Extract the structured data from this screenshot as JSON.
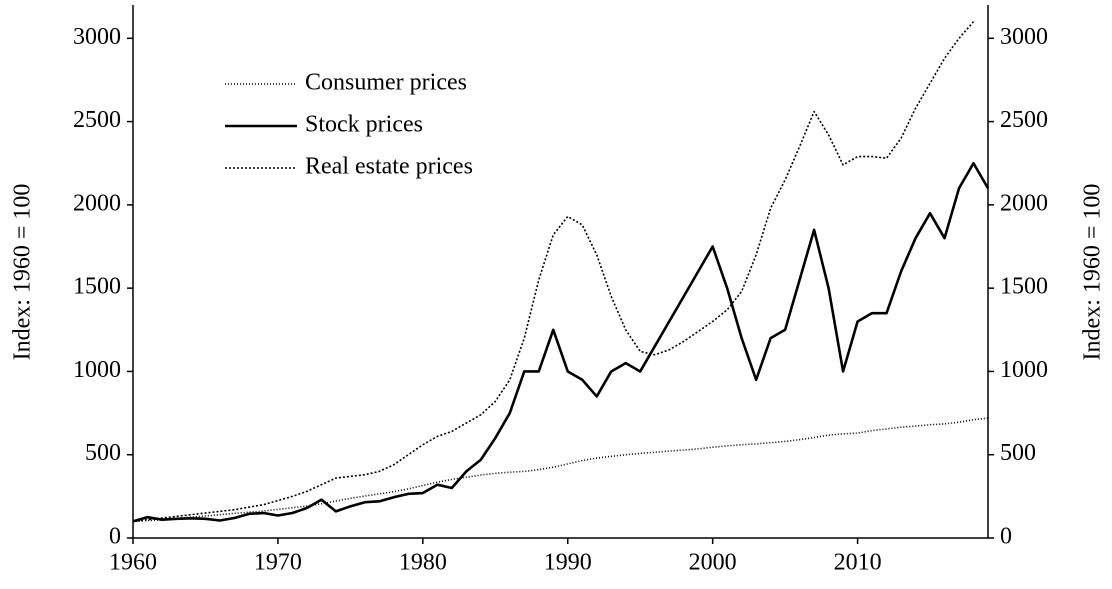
{
  "chart_data": {
    "type": "line",
    "ylabel": "Index: 1960 = 100",
    "y2label": "Index: 1960 = 100",
    "x": [
      1960,
      1961,
      1962,
      1963,
      1964,
      1965,
      1966,
      1967,
      1968,
      1969,
      1970,
      1971,
      1972,
      1973,
      1974,
      1975,
      1976,
      1977,
      1978,
      1979,
      1980,
      1981,
      1982,
      1983,
      1984,
      1985,
      1986,
      1987,
      1988,
      1989,
      1990,
      1991,
      1992,
      1993,
      1994,
      1995,
      1996,
      1997,
      1998,
      1999,
      2000,
      2001,
      2002,
      2003,
      2004,
      2005,
      2006,
      2007,
      2008,
      2009,
      2010,
      2011,
      2012,
      2013,
      2014,
      2015,
      2016,
      2017,
      2018,
      2019
    ],
    "xlim": [
      1960,
      2019
    ],
    "xticks": [
      1960,
      1970,
      1980,
      1990,
      2000,
      2010
    ],
    "ylim": [
      0,
      3200
    ],
    "yticks": [
      0,
      500,
      1000,
      1500,
      2000,
      2500,
      3000
    ],
    "y2lim": [
      0,
      3200
    ],
    "y2ticks": [
      0,
      500,
      1000,
      1500,
      2000,
      2500,
      3000
    ],
    "legend": "upper left",
    "series": [
      {
        "name": "Consumer prices",
        "color": "#000000",
        "dash": "1,2",
        "width": 1.6,
        "values": [
          100,
          105,
          110,
          118,
          125,
          132,
          140,
          148,
          155,
          162,
          172,
          182,
          192,
          205,
          222,
          238,
          252,
          265,
          278,
          295,
          315,
          335,
          352,
          365,
          378,
          388,
          395,
          400,
          410,
          425,
          445,
          465,
          480,
          490,
          500,
          508,
          515,
          522,
          528,
          535,
          545,
          553,
          560,
          565,
          572,
          580,
          590,
          603,
          618,
          625,
          630,
          645,
          655,
          665,
          672,
          680,
          685,
          695,
          710,
          720
        ]
      },
      {
        "name": "Stock prices",
        "color": "#000000",
        "dash": "none",
        "width": 2.6,
        "values": [
          100,
          125,
          110,
          115,
          118,
          115,
          105,
          120,
          145,
          150,
          135,
          150,
          180,
          230,
          160,
          190,
          215,
          220,
          245,
          265,
          270,
          320,
          300,
          400,
          470,
          600,
          750,
          1000,
          1000,
          1250,
          1000,
          950,
          850,
          1000,
          1050,
          1000,
          1150,
          1300,
          1450,
          1600,
          1750,
          1500,
          1200,
          950,
          1200,
          1250,
          1550,
          1850,
          1500,
          1000,
          1300,
          1350,
          1350,
          1600,
          1800,
          1950,
          1800,
          2100,
          2250,
          2100
        ]
      },
      {
        "name": "Real estate prices",
        "color": "#000000",
        "dash": "2,2",
        "width": 1.6,
        "values": [
          100,
          110,
          120,
          130,
          140,
          150,
          160,
          170,
          185,
          200,
          225,
          250,
          280,
          320,
          360,
          370,
          380,
          400,
          440,
          500,
          560,
          610,
          640,
          690,
          740,
          820,
          950,
          1200,
          1550,
          1820,
          1930,
          1880,
          1700,
          1450,
          1250,
          1120,
          1100,
          1130,
          1180,
          1240,
          1300,
          1370,
          1480,
          1700,
          1980,
          2150,
          2350,
          2560,
          2420,
          2240,
          2290,
          2290,
          2280,
          2400,
          2580,
          2730,
          2880,
          3000,
          3100,
          null
        ]
      }
    ]
  }
}
